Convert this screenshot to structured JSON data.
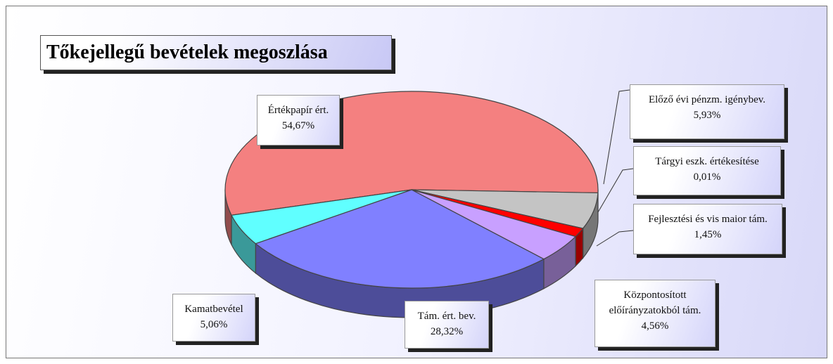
{
  "chart_data": {
    "type": "pie",
    "title": "Tőkejellegű bevételek megoszlása",
    "categories": [
      "Értékpapír ért.",
      "Előző évi pénzm. igénybev.",
      "Tárgyi eszk. értékesítése",
      "Fejlesztési és vis maior tám.",
      "Központosított előírányzatokból tám.",
      "Tám. ért. bev.",
      "Kamatbevétel"
    ],
    "values": [
      54.67,
      5.93,
      0.01,
      1.45,
      4.56,
      28.32,
      5.06
    ],
    "value_labels": [
      "54,67%",
      "5,93%",
      "0,01%",
      "1,45%",
      "4,56%",
      "28,32%",
      "5,06%"
    ],
    "colors": [
      "#f48080",
      "#c4c4c4",
      "#800000",
      "#ff0000",
      "#c8a0ff",
      "#8080ff",
      "#60ffff"
    ]
  }
}
